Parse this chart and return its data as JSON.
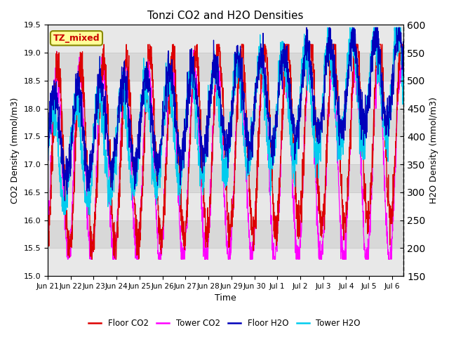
{
  "title": "Tonzi CO2 and H2O Densities",
  "xlabel": "Time",
  "ylabel_left": "CO2 Density (mmol/m3)",
  "ylabel_right": "H2O Density (mmol/m3)",
  "ylim_left": [
    15.0,
    19.5
  ],
  "ylim_right": [
    150,
    600
  ],
  "annotation_text": "TZ_mixed",
  "annotation_color": "#cc0000",
  "annotation_bg": "#ffff99",
  "annotation_border": "#888800",
  "colors": {
    "floor_co2": "#dd0000",
    "tower_co2": "#ff00ff",
    "floor_h2o": "#0000bb",
    "tower_h2o": "#00ccee"
  },
  "legend_labels": [
    "Floor CO2",
    "Tower CO2",
    "Floor H2O",
    "Tower H2O"
  ],
  "grid_color": "#cccccc",
  "plot_bg_light": "#e8e8e8",
  "plot_bg_dark": "#d0d0d0",
  "n_points": 2000,
  "seed": 7,
  "end_day": 15.5,
  "xtick_positions": [
    0,
    1,
    2,
    3,
    4,
    5,
    6,
    7,
    8,
    9,
    10,
    11,
    12,
    13,
    14,
    15
  ],
  "xtick_labels": [
    "Jun 21",
    "Jun 22",
    "Jun 23",
    "Jun 24",
    "Jun 25",
    "Jun 26",
    "Jun 27",
    "Jun 28",
    "Jun 29",
    "Jun 30",
    "Jul 1",
    "Jul 2",
    "Jul 3",
    "Jul 4",
    "Jul 5",
    "Jul 6"
  ]
}
